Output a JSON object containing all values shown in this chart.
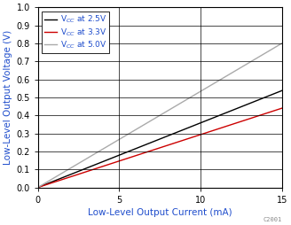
{
  "xlabel": "Low-Level Output Current (mA)",
  "ylabel": "Low-Level Output Voltage (V)",
  "xlim": [
    0,
    15
  ],
  "ylim": [
    0,
    1.0
  ],
  "xticks": [
    0,
    5,
    10,
    15
  ],
  "yticks": [
    0.0,
    0.1,
    0.2,
    0.3,
    0.4,
    0.5,
    0.6,
    0.7,
    0.8,
    0.9,
    1.0
  ],
  "lines": [
    {
      "label": "V$_{CC}$ at 2.5V",
      "color": "#000000",
      "slope": 0.0358,
      "intercept": 0.0
    },
    {
      "label": "V$_{CC}$ at 3.3V",
      "color": "#cc0000",
      "slope": 0.0293,
      "intercept": 0.0
    },
    {
      "label": "V$_{CC}$ at 5.0V",
      "color": "#aaaaaa",
      "slope": 0.0533,
      "intercept": 0.0
    }
  ],
  "legend_loc": "upper left",
  "watermark": "C2001",
  "xlabel_color": "#1f4dcc",
  "ylabel_color": "#1f4dcc",
  "legend_label_color": "#1f4dcc",
  "tick_color": "#000000",
  "grid_color": "#000000",
  "grid_linewidth": 0.5,
  "spine_linewidth": 0.8,
  "line_linewidth": 1.0,
  "legend_fontsize": 6.5,
  "axis_label_fontsize": 7.5,
  "tick_fontsize": 7.0
}
